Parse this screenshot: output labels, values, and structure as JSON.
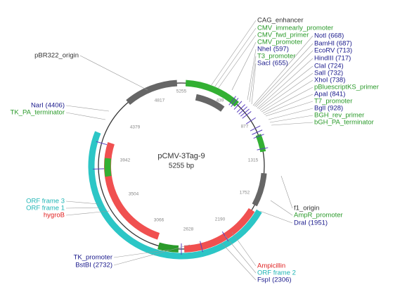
{
  "title": "pCMV-3Tag-9",
  "size": "5255 bp",
  "ruler": [
    5255,
    439,
    877,
    1315,
    1752,
    2190,
    2628,
    3066,
    3504,
    3942,
    4379,
    4817
  ],
  "labels": [
    "CAG_enhancer",
    "CMV_immearly_promoter",
    "CMV_fwd_primer",
    "CMV_promoter",
    "NheI (597)",
    "T3_promoter",
    "SacI (655)",
    "NotI (668)",
    "BamHI (687)",
    "EcoRV (713)",
    "HindIII (717)",
    "ClaI (724)",
    "SalI (732)",
    "XhoI (738)",
    "pBluescriptKS_primer",
    "ApaI (841)",
    "T7_promoter",
    "BglI (928)",
    "BGH_rev_primer",
    "bGH_PA_terminator",
    "pBR322_origin",
    "NarI (4406)",
    "TK_PA_terminator",
    "ORF frame 3",
    "ORF frame 1",
    "hygroB",
    "TK_promoter",
    "BstBI (2732)",
    "f1_origin",
    "AmpR_promoter",
    "DraI (1951)",
    "Ampicillin",
    "ORF frame 2",
    "FspI (2306)"
  ]
}
